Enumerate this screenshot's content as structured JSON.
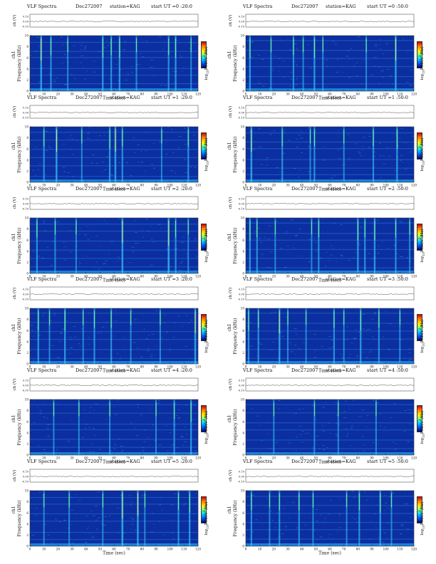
{
  "figure": {
    "colors": {
      "background": "#0b2fa0",
      "ch_trace": "#222222",
      "frame": "#333333"
    },
    "colorbar_label_html": "log<sub>10</sub>PSD(V<sup>2</sup>/Hz)"
  },
  "chart_data": [
    {
      "type": "heatmap",
      "id": "p0",
      "col": 0,
      "row": 0,
      "title_left": "VLF Spectra",
      "date": "Dec272007",
      "station": "station=KAG",
      "start_ut": "start  UT  =0 :20:0",
      "ch_label": "ch (V)",
      "ch_ticks": [
        "0.10",
        "0.00",
        "-0.10"
      ],
      "ylabel_ch": "ch1",
      "ylabel": "Frequency  (kHz)",
      "xlabel": "Time  (sec)",
      "x_ticks": [
        "0",
        "10",
        "20",
        "30",
        "40",
        "50",
        "60",
        "70",
        "80",
        "90",
        "100",
        "110",
        "120"
      ],
      "y_ticks": [
        "0",
        "2",
        "4",
        "6",
        "8",
        "10"
      ],
      "xlim": [
        0,
        120
      ],
      "ylim": [
        0,
        10
      ],
      "colorbar": "log10PSD(V^2/Hz)",
      "bursts": [
        {
          "t": 8,
          "i": 0.8
        },
        {
          "t": 15,
          "i": 0.6
        },
        {
          "t": 27,
          "i": 0.5
        },
        {
          "t": 52,
          "i": 0.7
        },
        {
          "t": 58,
          "i": 0.6
        },
        {
          "t": 64,
          "i": 0.7
        },
        {
          "t": 76,
          "i": 0.5
        },
        {
          "t": 99,
          "i": 0.6
        },
        {
          "t": 104,
          "i": 0.7
        },
        {
          "t": 115,
          "i": 0.5
        }
      ]
    },
    {
      "type": "heatmap",
      "id": "p1",
      "col": 1,
      "row": 0,
      "title_left": "VLF Spectra",
      "date": "Dec272007",
      "station": "station=KAG",
      "start_ut": "start  UT  =0 :50:0",
      "ch_label": "ch (V)",
      "ch_ticks": [
        "0.10",
        "0.00",
        "-0.10"
      ],
      "ylabel_ch": "ch1",
      "ylabel": "Frequency  (kHz)",
      "xlabel": "Time  (sec)",
      "x_ticks": [
        "0",
        "10",
        "20",
        "30",
        "40",
        "50",
        "60",
        "70",
        "80",
        "90",
        "100",
        "110",
        "120"
      ],
      "y_ticks": [
        "0",
        "2",
        "4",
        "6",
        "8",
        "10"
      ],
      "xlim": [
        0,
        120
      ],
      "ylim": [
        0,
        10
      ],
      "colorbar": "log10PSD(V^2/Hz)",
      "bursts": [
        {
          "t": 3,
          "i": 0.7
        },
        {
          "t": 18,
          "i": 0.5
        },
        {
          "t": 34,
          "i": 0.6
        },
        {
          "t": 41,
          "i": 0.5
        },
        {
          "t": 49,
          "i": 0.7
        },
        {
          "t": 55,
          "i": 0.5
        },
        {
          "t": 86,
          "i": 0.5
        },
        {
          "t": 107,
          "i": 0.8
        }
      ]
    },
    {
      "type": "heatmap",
      "id": "p2",
      "col": 0,
      "row": 1,
      "title_left": "VLF Spectra",
      "date": "Dec272007",
      "station": "station=KAG",
      "start_ut": "start  UT  =1 :20:0",
      "ch_label": "ch (V)",
      "ch_ticks": [
        "0.10",
        "0.00",
        "-0.10"
      ],
      "ylabel_ch": "ch1",
      "ylabel": "Frequency  (kHz)",
      "xlabel": "Time  (sec)",
      "x_ticks": [
        "0",
        "10",
        "20",
        "30",
        "40",
        "50",
        "60",
        "70",
        "80",
        "90",
        "100",
        "110",
        "120"
      ],
      "y_ticks": [
        "0",
        "2",
        "4",
        "6",
        "8",
        "10"
      ],
      "xlim": [
        0,
        120
      ],
      "ylim": [
        0,
        10
      ],
      "colorbar": "log10PSD(V^2/Hz)",
      "bursts": [
        {
          "t": 10,
          "i": 0.6
        },
        {
          "t": 19,
          "i": 0.8
        },
        {
          "t": 37,
          "i": 0.5
        },
        {
          "t": 57,
          "i": 0.7
        },
        {
          "t": 61,
          "i": 0.8
        },
        {
          "t": 66,
          "i": 0.6
        },
        {
          "t": 94,
          "i": 0.5
        },
        {
          "t": 113,
          "i": 0.6
        }
      ]
    },
    {
      "type": "heatmap",
      "id": "p3",
      "col": 1,
      "row": 1,
      "title_left": "VLF Spectra",
      "date": "Dec272007",
      "station": "station=KAG",
      "start_ut": "start  UT  =1 :50:0",
      "ch_label": "ch (V)",
      "ch_ticks": [
        "0.10",
        "0.00",
        "-0.10"
      ],
      "ylabel_ch": "ch1",
      "ylabel": "Frequency  (kHz)",
      "xlabel": "Time  (sec)",
      "x_ticks": [
        "0",
        "10",
        "20",
        "30",
        "40",
        "50",
        "60",
        "70",
        "80",
        "90",
        "100",
        "110",
        "120"
      ],
      "y_ticks": [
        "0",
        "2",
        "4",
        "6",
        "8",
        "10"
      ],
      "xlim": [
        0,
        120
      ],
      "ylim": [
        0,
        10
      ],
      "colorbar": "log10PSD(V^2/Hz)",
      "bursts": [
        {
          "t": 4,
          "i": 0.8
        },
        {
          "t": 26,
          "i": 0.6
        },
        {
          "t": 46,
          "i": 0.5
        },
        {
          "t": 49,
          "i": 0.6
        },
        {
          "t": 70,
          "i": 0.5
        },
        {
          "t": 91,
          "i": 0.6
        },
        {
          "t": 108,
          "i": 0.7
        }
      ]
    },
    {
      "type": "heatmap",
      "id": "p4",
      "col": 0,
      "row": 2,
      "title_left": "VLF Spectra",
      "date": "Dec272007",
      "station": "station=KAG",
      "start_ut": "start  UT  =2 :20:0",
      "ch_label": "ch (V)",
      "ch_ticks": [
        "0.10",
        "0.00",
        "-0.10"
      ],
      "ylabel_ch": "ch1",
      "ylabel": "Frequency  (kHz)",
      "xlabel": "Time  (sec)",
      "x_ticks": [
        "0",
        "10",
        "20",
        "30",
        "40",
        "50",
        "60",
        "70",
        "80",
        "90",
        "100",
        "110",
        "120"
      ],
      "y_ticks": [
        "0",
        "2",
        "4",
        "6",
        "8",
        "10"
      ],
      "xlim": [
        0,
        120
      ],
      "ylim": [
        0,
        10
      ],
      "colorbar": "log10PSD(V^2/Hz)",
      "bursts": [
        {
          "t": 5,
          "i": 0.6
        },
        {
          "t": 18,
          "i": 0.5
        },
        {
          "t": 33,
          "i": 0.5
        },
        {
          "t": 66,
          "i": 0.8
        },
        {
          "t": 99,
          "i": 0.9
        },
        {
          "t": 104,
          "i": 0.6
        },
        {
          "t": 113,
          "i": 0.5
        }
      ]
    },
    {
      "type": "heatmap",
      "id": "p5",
      "col": 1,
      "row": 2,
      "title_left": "VLF Spectra",
      "date": "Dec272007",
      "station": "station=KAG",
      "start_ut": "start  UT  =2 :50:0",
      "ch_label": "ch (V)",
      "ch_ticks": [
        "0.10",
        "0.00",
        "-0.10"
      ],
      "ylabel_ch": "ch1",
      "ylabel": "Frequency  (kHz)",
      "xlabel": "Time  (sec)",
      "x_ticks": [
        "0",
        "10",
        "20",
        "30",
        "40",
        "50",
        "60",
        "70",
        "80",
        "90",
        "100",
        "110",
        "120"
      ],
      "y_ticks": [
        "0",
        "2",
        "4",
        "6",
        "8",
        "10"
      ],
      "xlim": [
        0,
        120
      ],
      "ylim": [
        0,
        10
      ],
      "colorbar": "log10PSD(V^2/Hz)",
      "bursts": [
        {
          "t": 3,
          "i": 0.7
        },
        {
          "t": 8,
          "i": 0.6
        },
        {
          "t": 21,
          "i": 0.5
        },
        {
          "t": 47,
          "i": 0.5
        },
        {
          "t": 52,
          "i": 0.6
        },
        {
          "t": 80,
          "i": 0.7
        },
        {
          "t": 85,
          "i": 0.6
        },
        {
          "t": 92,
          "i": 0.7
        },
        {
          "t": 107,
          "i": 0.6
        },
        {
          "t": 117,
          "i": 0.5
        }
      ]
    },
    {
      "type": "heatmap",
      "id": "p6",
      "col": 0,
      "row": 3,
      "title_left": "VLF Spectra",
      "date": "Dec272007",
      "station": "station=KAG",
      "start_ut": "start  UT  =3 :20:0",
      "ch_label": "ch (V)",
      "ch_ticks": [
        "0.10",
        "0.00",
        "-0.10"
      ],
      "ylabel_ch": "ch1",
      "ylabel": "Frequency  (kHz)",
      "xlabel": "Time  (sec)",
      "x_ticks": [
        "0",
        "10",
        "20",
        "30",
        "40",
        "50",
        "60",
        "70",
        "80",
        "90",
        "100",
        "110",
        "120"
      ],
      "y_ticks": [
        "0",
        "2",
        "4",
        "6",
        "8",
        "10"
      ],
      "xlim": [
        0,
        120
      ],
      "ylim": [
        0,
        10
      ],
      "colorbar": "log10PSD(V^2/Hz)",
      "bursts": [
        {
          "t": 6,
          "i": 0.7
        },
        {
          "t": 14,
          "i": 0.5
        },
        {
          "t": 25,
          "i": 0.7
        },
        {
          "t": 38,
          "i": 0.5
        },
        {
          "t": 46,
          "i": 0.6
        },
        {
          "t": 58,
          "i": 0.6
        },
        {
          "t": 72,
          "i": 0.5
        },
        {
          "t": 93,
          "i": 0.5
        },
        {
          "t": 118,
          "i": 0.8
        }
      ]
    },
    {
      "type": "heatmap",
      "id": "p7",
      "col": 1,
      "row": 3,
      "title_left": "VLF Spectra",
      "date": "Dec272007",
      "station": "station=KAG",
      "start_ut": "start  UT  =3 :50:0",
      "ch_label": "ch (V)",
      "ch_ticks": [
        "0.10",
        "0.00",
        "-0.10"
      ],
      "ylabel_ch": "ch1",
      "ylabel": "Frequency  (kHz)",
      "xlabel": "Time  (sec)",
      "x_ticks": [
        "0",
        "10",
        "20",
        "30",
        "40",
        "50",
        "60",
        "70",
        "80",
        "90",
        "100",
        "110",
        "120"
      ],
      "y_ticks": [
        "0",
        "2",
        "4",
        "6",
        "8",
        "10"
      ],
      "xlim": [
        0,
        120
      ],
      "ylim": [
        0,
        10
      ],
      "colorbar": "log10PSD(V^2/Hz)",
      "bursts": [
        {
          "t": 2,
          "i": 0.7
        },
        {
          "t": 9,
          "i": 0.6
        },
        {
          "t": 24,
          "i": 0.8
        },
        {
          "t": 30,
          "i": 0.5
        },
        {
          "t": 43,
          "i": 0.5
        },
        {
          "t": 63,
          "i": 0.6
        },
        {
          "t": 70,
          "i": 0.5
        },
        {
          "t": 82,
          "i": 0.7
        },
        {
          "t": 95,
          "i": 0.6
        },
        {
          "t": 110,
          "i": 0.5
        }
      ]
    },
    {
      "type": "heatmap",
      "id": "p8",
      "col": 0,
      "row": 4,
      "title_left": "VLF Spectra",
      "date": "Dec272007",
      "station": "station=KAG",
      "start_ut": "start  UT  =4 :20:0",
      "ch_label": "ch (V)",
      "ch_ticks": [
        "0.10",
        "0.00",
        "-0.10"
      ],
      "ylabel_ch": "ch1",
      "ylabel": "Frequency  (kHz)",
      "xlabel": "Time  (sec)",
      "x_ticks": [
        "0",
        "10",
        "20",
        "30",
        "40",
        "50",
        "60",
        "70",
        "80",
        "90",
        "100",
        "110",
        "120"
      ],
      "y_ticks": [
        "0",
        "2",
        "4",
        "6",
        "8",
        "10"
      ],
      "xlim": [
        0,
        120
      ],
      "ylim": [
        0,
        10
      ],
      "colorbar": "log10PSD(V^2/Hz)",
      "bursts": [
        {
          "t": 17,
          "i": 0.5
        },
        {
          "t": 35,
          "i": 0.5
        },
        {
          "t": 57,
          "i": 0.5
        },
        {
          "t": 90,
          "i": 0.5
        },
        {
          "t": 103,
          "i": 0.6
        },
        {
          "t": 115,
          "i": 0.7
        }
      ]
    },
    {
      "type": "heatmap",
      "id": "p9",
      "col": 1,
      "row": 4,
      "title_left": "VLF Spectra",
      "date": "Dec272007",
      "station": "station=KAG",
      "start_ut": "start  UT  =4 :50:0",
      "ch_label": "ch (V)",
      "ch_ticks": [
        "0.10",
        "0.00",
        "-0.10"
      ],
      "ylabel_ch": "ch1",
      "ylabel": "Frequency  (kHz)",
      "xlabel": "Time  (sec)",
      "x_ticks": [
        "0",
        "10",
        "20",
        "30",
        "40",
        "50",
        "60",
        "70",
        "80",
        "90",
        "100",
        "110",
        "120"
      ],
      "y_ticks": [
        "0",
        "2",
        "4",
        "6",
        "8",
        "10"
      ],
      "xlim": [
        0,
        120
      ],
      "ylim": [
        0,
        10
      ],
      "colorbar": "log10PSD(V^2/Hz)",
      "bursts": [
        {
          "t": 20,
          "i": 0.5
        },
        {
          "t": 49,
          "i": 0.5
        },
        {
          "t": 66,
          "i": 0.5
        },
        {
          "t": 93,
          "i": 0.5
        }
      ]
    },
    {
      "type": "heatmap",
      "id": "p10",
      "col": 0,
      "row": 5,
      "title_left": "VLF Spectra",
      "date": "Dec272007",
      "station": "station=KAG",
      "start_ut": "start  UT  =5 :20:0",
      "ch_label": "ch (V)",
      "ch_ticks": [
        "0.10",
        "0.00",
        "-0.10"
      ],
      "ylabel_ch": "ch1",
      "ylabel": "Frequency  (kHz)",
      "xlabel": "Time  (sec)",
      "x_ticks": [
        "0",
        "10",
        "20",
        "30",
        "40",
        "50",
        "60",
        "70",
        "80",
        "90",
        "100",
        "110",
        "120"
      ],
      "y_ticks": [
        "0",
        "2",
        "4",
        "6",
        "8",
        "10"
      ],
      "xlim": [
        0,
        120
      ],
      "ylim": [
        0,
        10
      ],
      "colorbar": "log10PSD(V^2/Hz)",
      "bursts": [
        {
          "t": 10,
          "i": 0.5
        },
        {
          "t": 28,
          "i": 0.5
        },
        {
          "t": 52,
          "i": 0.5
        },
        {
          "t": 66,
          "i": 0.9
        },
        {
          "t": 77,
          "i": 0.8
        },
        {
          "t": 82,
          "i": 0.5
        },
        {
          "t": 106,
          "i": 0.6
        },
        {
          "t": 114,
          "i": 0.7
        }
      ]
    },
    {
      "type": "heatmap",
      "id": "p11",
      "col": 1,
      "row": 5,
      "title_left": "VLF Spectra",
      "date": "Dec272007",
      "station": "station=KAG",
      "start_ut": "start  UT  =5 :50:0",
      "ch_label": "ch (V)",
      "ch_ticks": [
        "0.10",
        "0.00",
        "-0.10"
      ],
      "ylabel_ch": "ch1",
      "ylabel": "Frequency  (kHz)",
      "xlabel": "Time  (sec)",
      "x_ticks": [
        "0",
        "10",
        "20",
        "30",
        "40",
        "50",
        "60",
        "70",
        "80",
        "90",
        "100",
        "110",
        "120"
      ],
      "y_ticks": [
        "0",
        "2",
        "4",
        "6",
        "8",
        "10"
      ],
      "xlim": [
        0,
        120
      ],
      "ylim": [
        0,
        10
      ],
      "colorbar": "log10PSD(V^2/Hz)",
      "bursts": [
        {
          "t": 4,
          "i": 0.6
        },
        {
          "t": 17,
          "i": 0.5
        },
        {
          "t": 24,
          "i": 0.6
        },
        {
          "t": 38,
          "i": 0.6
        },
        {
          "t": 48,
          "i": 0.5
        },
        {
          "t": 72,
          "i": 0.5
        },
        {
          "t": 81,
          "i": 0.6
        },
        {
          "t": 96,
          "i": 0.7
        },
        {
          "t": 104,
          "i": 0.5
        }
      ]
    }
  ]
}
